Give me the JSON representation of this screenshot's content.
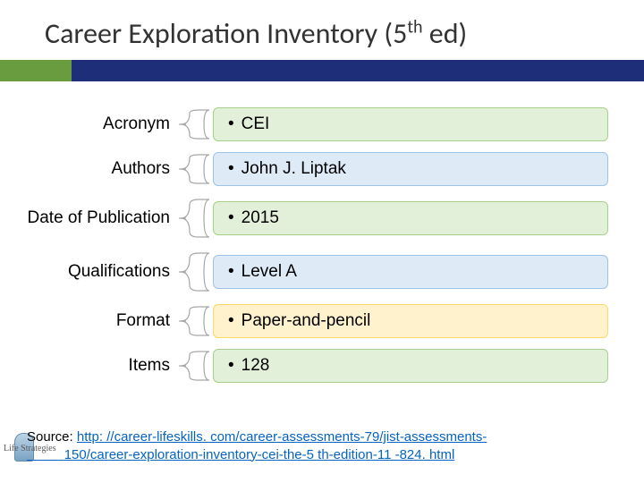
{
  "title_main": "Career Exploration Inventory (5",
  "title_sup": "th",
  "title_end": " ed)",
  "divider": {
    "green": "#689c3e",
    "navy": "#1f2e79"
  },
  "rows": [
    {
      "label": "Acronym",
      "value": "CEI",
      "fill": "#e2f0d9",
      "border": "#a8d08d",
      "tall": false
    },
    {
      "label": "Authors",
      "value": "John J. Liptak",
      "fill": "#deebf7",
      "border": "#9dc3e6",
      "tall": false
    },
    {
      "label": "Date of Publication",
      "value": "2015",
      "fill": "#e2f0d9",
      "border": "#a8d08d",
      "tall": true
    },
    {
      "label": "Qualifications",
      "value": "Level A",
      "fill": "#deebf7",
      "border": "#9dc3e6",
      "tall": true
    },
    {
      "label": "Format",
      "value": "Paper-and-pencil",
      "fill": "#fff2cc",
      "border": "#ffd966",
      "tall": false
    },
    {
      "label": "Items",
      "value": "128",
      "fill": "#e2f0d9",
      "border": "#a8d08d",
      "tall": false
    }
  ],
  "connector_stroke": "#a6a6a6",
  "source_label": "Source: ",
  "source_link_1": "http: //career-lifeskills. com/career-assessments-79/jist-assessments-",
  "source_link_2": "150/career-exploration-inventory-cei-the-5 th-edition-11 -824. html",
  "logo_text": "Life Strategies"
}
